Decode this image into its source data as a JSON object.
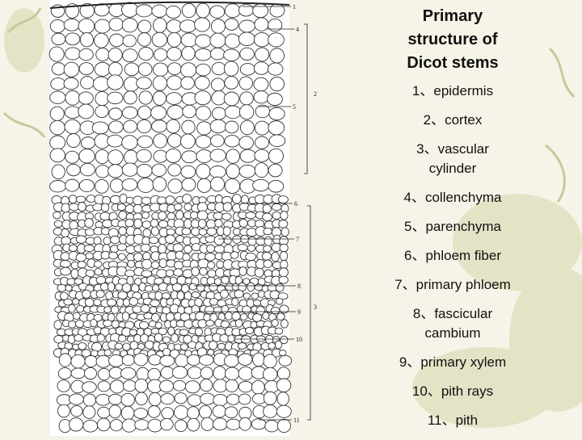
{
  "slide": {
    "title": "Primary structure of Dicot stems",
    "items": [
      "1、epidermis",
      "2、cortex",
      "3、vascular cylinder",
      "4、collenchyma",
      "5、parenchyma",
      "6、phloem fiber",
      "7、primary phloem",
      "8、fascicular cambium",
      "9、primary xylem",
      "10、pith rays",
      "11、pith"
    ],
    "figure_labels": [
      "1",
      "4",
      "2",
      "5",
      "6",
      "7",
      "3",
      "8",
      "9",
      "10",
      "11"
    ]
  }
}
